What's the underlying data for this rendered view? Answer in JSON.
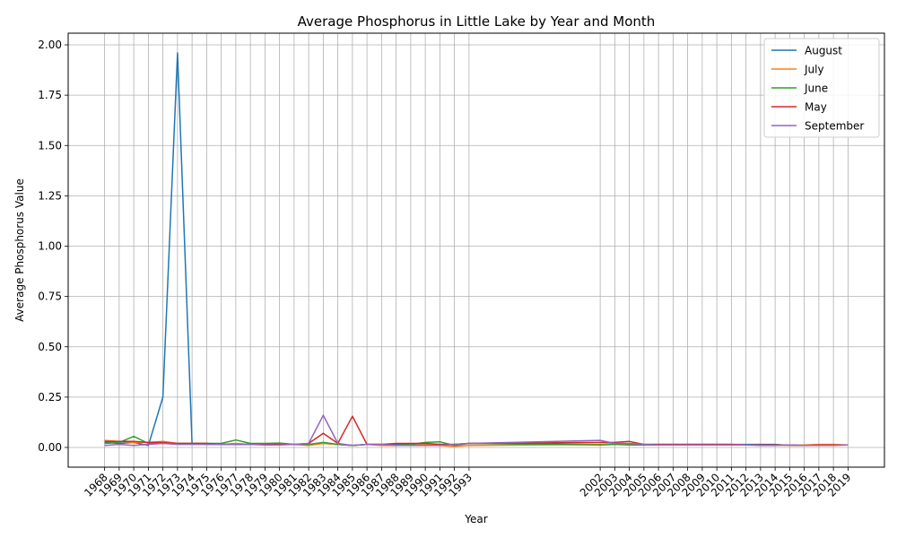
{
  "chart_data": {
    "type": "line",
    "title": "Average Phosphorus in Little Lake by Year and Month",
    "xlabel": "Year",
    "ylabel": "Average Phosphorus Value",
    "x": [
      1968,
      1969,
      1970,
      1971,
      1972,
      1973,
      1974,
      1975,
      1976,
      1977,
      1978,
      1979,
      1980,
      1981,
      1982,
      1983,
      1984,
      1985,
      1986,
      1987,
      1988,
      1989,
      1990,
      1991,
      1992,
      1993,
      2002,
      2003,
      2004,
      2005,
      2006,
      2007,
      2008,
      2009,
      2010,
      2011,
      2012,
      2013,
      2014,
      2015,
      2016,
      2017,
      2018,
      2019
    ],
    "x_tick_labels": [
      "1968",
      "1969",
      "1970",
      "1971",
      "1972",
      "1973",
      "1974",
      "1975",
      "1976",
      "1977",
      "1978",
      "1979",
      "1980",
      "1981",
      "1982",
      "1983",
      "1984",
      "1985",
      "1986",
      "1987",
      "1988",
      "1989",
      "1990",
      "1991",
      "1992",
      "1993",
      "2002",
      "2003",
      "2004",
      "2005",
      "2006",
      "2007",
      "2008",
      "2009",
      "2010",
      "2011",
      "2012",
      "2013",
      "2014",
      "2015",
      "2016",
      "2017",
      "2018",
      "2019"
    ],
    "xlim": [
      1965.5,
      2021.5
    ],
    "ylim": [
      -0.098,
      2.058
    ],
    "y_ticks": [
      0.0,
      0.25,
      0.5,
      0.75,
      1.0,
      1.25,
      1.5,
      1.75,
      2.0
    ],
    "y_tick_labels": [
      "0.00",
      "0.25",
      "0.50",
      "0.75",
      "1.00",
      "1.25",
      "1.50",
      "1.75",
      "2.00"
    ],
    "grid": true,
    "legend_position": "top-right",
    "series": [
      {
        "name": "August",
        "color": "#1f77b4",
        "values": [
          0.025,
          0.02,
          0.025,
          0.01,
          0.25,
          1.96,
          0.02,
          0.015,
          0.015,
          0.015,
          0.015,
          0.015,
          0.015,
          0.015,
          0.015,
          0.02,
          0.015,
          0.01,
          0.015,
          0.015,
          0.015,
          0.015,
          0.015,
          0.015,
          0.015,
          0.02,
          0.015,
          0.015,
          0.015,
          0.015,
          0.015,
          0.015,
          0.015,
          0.015,
          0.015,
          0.015,
          0.015,
          0.015,
          0.015,
          0.01,
          0.01,
          0.012,
          0.012,
          0.012
        ]
      },
      {
        "name": "July",
        "color": "#ff7f0e",
        "values": [
          0.035,
          0.03,
          0.025,
          0.025,
          0.03,
          0.02,
          0.02,
          0.02,
          0.015,
          0.02,
          0.015,
          0.015,
          0.015,
          0.015,
          0.01,
          0.02,
          0.015,
          0.01,
          0.015,
          0.01,
          0.01,
          0.01,
          0.015,
          0.01,
          0.005,
          0.01,
          0.015,
          0.02,
          0.015,
          0.015,
          0.015,
          0.015,
          0.015,
          0.015,
          0.015,
          0.015,
          0.012,
          0.012,
          0.012,
          0.01,
          0.012,
          0.015,
          0.015,
          0.012
        ]
      },
      {
        "name": "June",
        "color": "#2ca02c",
        "values": [
          0.02,
          0.025,
          0.055,
          0.02,
          0.02,
          0.02,
          0.02,
          0.02,
          0.02,
          0.037,
          0.02,
          0.02,
          0.022,
          0.015,
          0.015,
          0.025,
          0.015,
          0.01,
          0.015,
          0.015,
          0.01,
          0.015,
          0.025,
          0.028,
          0.01,
          0.02,
          0.012,
          0.015,
          0.012,
          0.012,
          0.012,
          0.012,
          0.012,
          0.012,
          0.012,
          0.012,
          0.012,
          0.012,
          0.012,
          0.012,
          0.01,
          0.01,
          0.012,
          0.012
        ]
      },
      {
        "name": "May",
        "color": "#d62728",
        "values": [
          0.03,
          0.03,
          0.03,
          0.025,
          0.025,
          0.02,
          0.02,
          0.02,
          0.015,
          0.015,
          0.015,
          0.015,
          0.015,
          0.015,
          0.02,
          0.07,
          0.02,
          0.155,
          0.015,
          0.015,
          0.02,
          0.02,
          0.02,
          0.015,
          0.015,
          0.02,
          0.025,
          0.025,
          0.03,
          0.015,
          0.015,
          0.015,
          0.015,
          0.015,
          0.015,
          0.015,
          0.012,
          0.012,
          0.012,
          0.012,
          0.01,
          0.012,
          0.012,
          0.012
        ]
      },
      {
        "name": "September",
        "color": "#9467bd",
        "values": [
          0.01,
          0.015,
          0.01,
          0.015,
          0.02,
          0.015,
          0.015,
          0.015,
          0.015,
          0.015,
          0.015,
          0.012,
          0.012,
          0.015,
          0.02,
          0.16,
          0.02,
          0.01,
          0.015,
          0.015,
          0.01,
          0.01,
          0.01,
          0.01,
          0.015,
          0.02,
          0.035,
          0.02,
          0.02,
          0.015,
          0.012,
          0.012,
          0.012,
          0.012,
          0.012,
          0.012,
          0.012,
          0.01,
          0.01,
          0.012,
          0.01,
          0.01,
          0.01,
          0.012
        ]
      }
    ]
  }
}
